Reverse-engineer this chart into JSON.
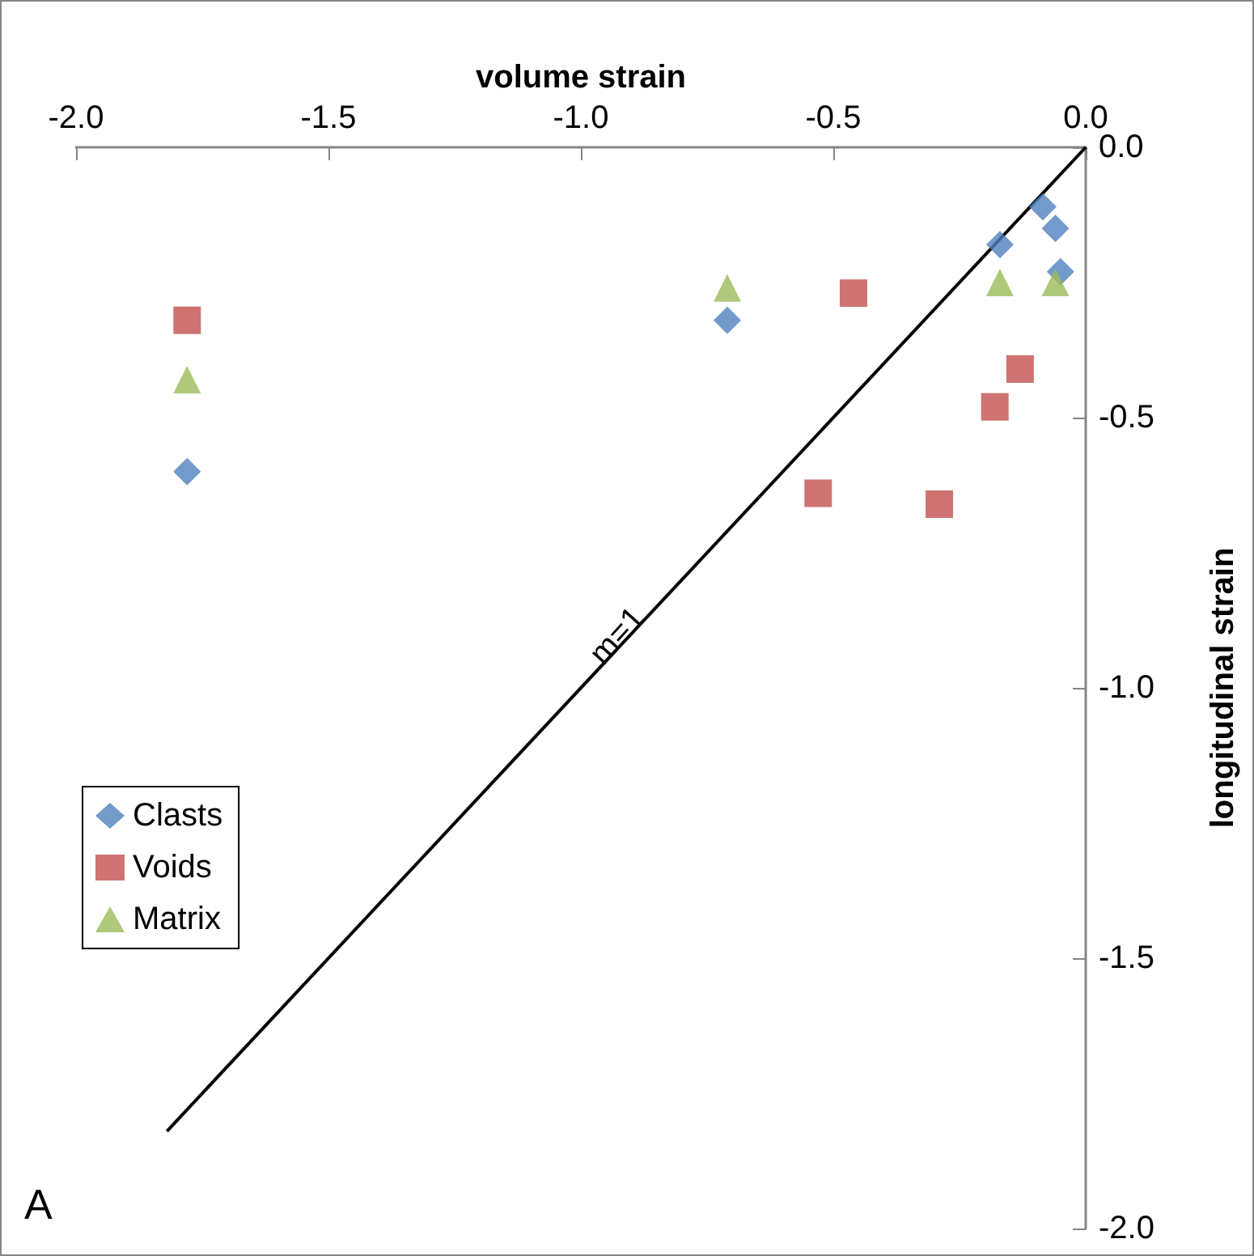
{
  "chart_data": {
    "type": "scatter",
    "xlabel": "volume strain",
    "ylabel": "longitudinal strain",
    "xlim": [
      -2,
      0
    ],
    "ylim": [
      -2,
      0
    ],
    "xticks": [
      {
        "value": -2,
        "label": "-2.0"
      },
      {
        "value": -1.5,
        "label": "-1.5"
      },
      {
        "value": -1,
        "label": "-1.0"
      },
      {
        "value": -0.5,
        "label": "-0.5"
      },
      {
        "value": 0,
        "label": "0.0"
      }
    ],
    "yticks": [
      {
        "value": -2,
        "label": "-2.0"
      },
      {
        "value": -1.5,
        "label": "-1.5"
      },
      {
        "value": -1,
        "label": "-1.0"
      },
      {
        "value": -0.5,
        "label": "-0.5"
      },
      {
        "value": 0,
        "label": "0.0"
      }
    ],
    "grid": false,
    "legend": "bottom left",
    "series": [
      {
        "name": "Clasts",
        "color": "#4f81bd",
        "marker": "diamond",
        "x": [
          -1.78,
          -0.71,
          -0.17,
          -0.085,
          -0.06,
          -0.05
        ],
        "values": [
          -0.6,
          -0.32,
          -0.18,
          -0.11,
          -0.15,
          -0.23
        ]
      },
      {
        "name": "Voids",
        "color": "#c0504d",
        "marker": "square",
        "x": [
          -1.78,
          -0.46,
          -0.13,
          -0.18,
          -0.53,
          -0.29
        ],
        "values": [
          -0.32,
          -0.27,
          -0.41,
          -0.48,
          -0.64,
          -0.66
        ]
      },
      {
        "name": "Matrix",
        "color": "#9bbb59",
        "marker": "triangle",
        "x": [
          -1.78,
          -0.71,
          -0.17,
          -0.06
        ],
        "values": [
          -0.43,
          -0.26,
          -0.25,
          -0.25
        ]
      },
      {
        "type": "line",
        "color": "#000000",
        "marker": "none",
        "x": [
          -1.82,
          0
        ],
        "values": [
          -1.82,
          0
        ]
      }
    ],
    "annotations": [
      "m=1",
      "A"
    ]
  }
}
